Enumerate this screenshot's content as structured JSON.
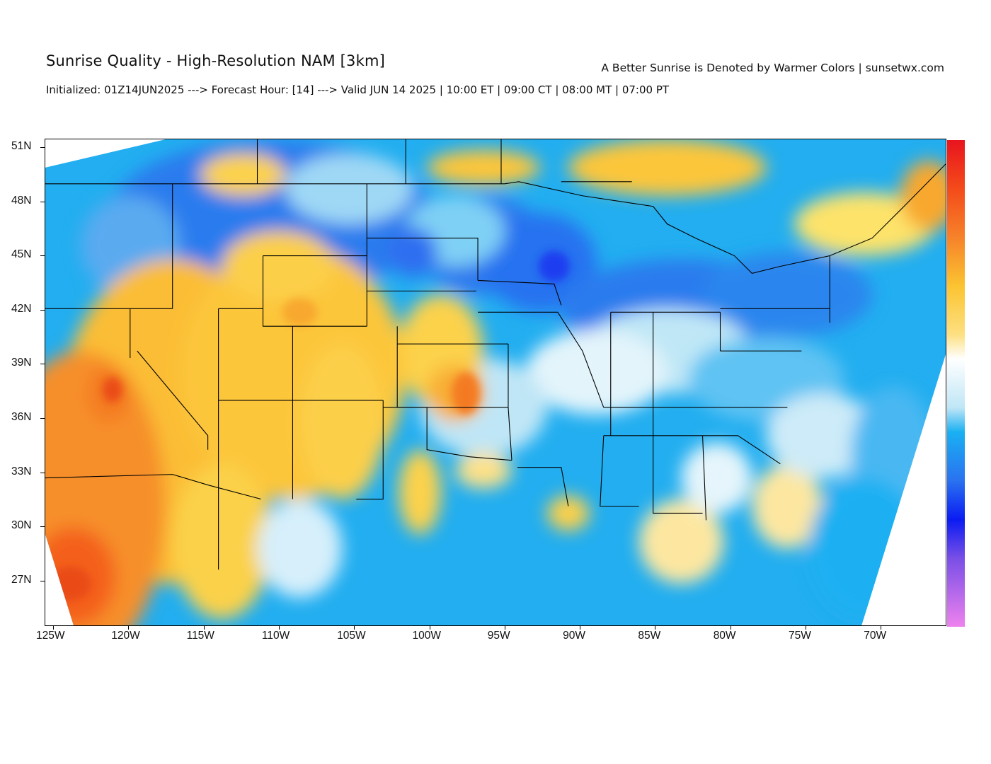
{
  "header": {
    "title": "Sunrise Quality - High-Resolution NAM [3km]",
    "right_note": "A Better Sunrise is Denoted by Warmer Colors | sunsetwx.com",
    "subtitle": "Initialized: 01Z14JUN2025 ---> Forecast Hour: [14] ---> Valid JUN 14 2025 | 10:00 ET | 09:00 CT | 08:00 MT | 07:00 PT"
  },
  "map": {
    "lat_ticks": [
      "51N",
      "48N",
      "45N",
      "42N",
      "39N",
      "36N",
      "33N",
      "30N",
      "27N"
    ],
    "lon_ticks": [
      "125W",
      "120W",
      "115W",
      "110W",
      "105W",
      "100W",
      "95W",
      "90W",
      "85W",
      "80W",
      "75W",
      "70W"
    ]
  },
  "colorbar": {
    "colors": [
      "#e8141e",
      "#f44b1a",
      "#f6822a",
      "#f7a72a",
      "#fbc431",
      "#fde082",
      "#ffffff",
      "#bfe6f6",
      "#1ab0f2",
      "#2a72f0",
      "#0a1cf2",
      "#7a4fe6",
      "#ee82ee"
    ]
  }
}
